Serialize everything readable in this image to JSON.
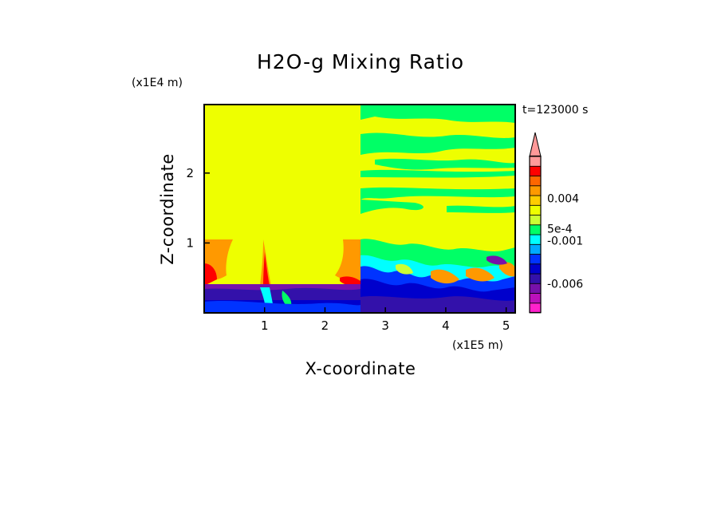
{
  "chart_data": {
    "type": "heatmap",
    "title": "H2O-g Mixing Ratio",
    "xlabel": "X-coordinate",
    "ylabel": "Z-coordinate",
    "x_unit": "(x1E5 m)",
    "y_unit": "(x1E4 m)",
    "time_label": "t=123000 s",
    "xlim": [
      0,
      5.15
    ],
    "ylim": [
      0,
      2.98
    ],
    "x_ticks": [
      1,
      2,
      3,
      4,
      5
    ],
    "y_ticks": [
      1,
      2
    ],
    "x_tick_labels": [
      "1",
      "2",
      "3",
      "4",
      "5"
    ],
    "y_tick_labels": [
      "1",
      "2"
    ],
    "colorbar": {
      "levels": 16,
      "colors": [
        "#ff22cc",
        "#bb11bb",
        "#7711aa",
        "#3311aa",
        "#0000cc",
        "#0033ff",
        "#00aaff",
        "#00ffff",
        "#00ff66",
        "#ccff33",
        "#eeff00",
        "#ffcc00",
        "#ff9900",
        "#ff6600",
        "#ff0000",
        "#ff9999"
      ],
      "labels": [
        {
          "text": "-0.006",
          "level": 3
        },
        {
          "text": "-0.001",
          "level": 7.4
        },
        {
          "text": "5e-4",
          "level": 8.6
        },
        {
          "text": "0.004",
          "level": 11.7
        }
      ],
      "extend": "max"
    },
    "regions": [
      {
        "x": [
          0,
          2.6
        ],
        "z": [
          0,
          2.98
        ],
        "color": "#eeff00",
        "note": "left uniform zone"
      },
      {
        "x": [
          2.6,
          5.15
        ],
        "z": [
          1.45,
          2.98
        ],
        "color": "#eeff00",
        "note": "right upper with green bands"
      }
    ],
    "colors": {
      "background": "#ffffff",
      "low_yellow": "#eeff00",
      "green": "#00ff66",
      "cyan": "#00ffff",
      "blue": "#0000cc",
      "purple": "#7711aa",
      "orange": "#ff9900",
      "red": "#ff0000"
    }
  }
}
